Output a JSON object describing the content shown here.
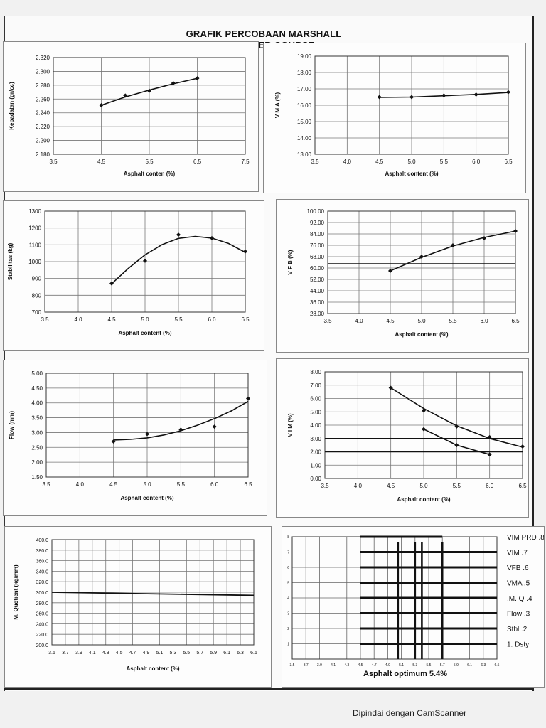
{
  "header": {
    "title_line1": "GRAFIK PERCOBAAN MARSHALL",
    "title_line2": "AC - BINDER COURSE"
  },
  "footer": {
    "text": "Dipindai dengan CamScanner"
  },
  "chart_data": [
    {
      "id": "density",
      "type": "line",
      "xlabel": "Asphalt conten (%)",
      "ylabel": "Kepadatan (gr/cc)",
      "xlim": [
        3.5,
        7.5
      ],
      "ylim": [
        2.18,
        2.32
      ],
      "xticks": [
        3.5,
        4.5,
        5.5,
        6.5,
        7.5
      ],
      "xtick_labels": [
        "3.5",
        "4.5",
        "5.5",
        "6.5",
        "7.5"
      ],
      "yticks": [
        2.18,
        2.2,
        2.22,
        2.24,
        2.26,
        2.28,
        2.3,
        2.32
      ],
      "ytick_labels": [
        "2.180",
        "2.200",
        "2.220",
        "2.240",
        "2.260",
        "2.280",
        "2.300",
        "2.320"
      ],
      "x_grid": [
        3.5,
        4.5,
        5.5,
        6.5,
        7.5
      ],
      "y_grid": [
        2.18,
        2.2,
        2.22,
        2.24,
        2.26,
        2.28,
        2.3,
        2.32
      ],
      "points": [
        [
          4.5,
          2.251
        ],
        [
          5.0,
          2.265
        ],
        [
          5.5,
          2.272
        ],
        [
          6.0,
          2.283
        ],
        [
          6.5,
          2.29
        ]
      ],
      "curves": [
        [
          [
            4.5,
            2.251
          ],
          [
            5.0,
            2.263
          ],
          [
            5.5,
            2.273
          ],
          [
            6.0,
            2.282
          ],
          [
            6.5,
            2.29
          ]
        ]
      ],
      "hlines": []
    },
    {
      "id": "vma",
      "type": "line",
      "xlabel": "Asphalt content (%)",
      "ylabel": "V M A (%)",
      "xlim": [
        3.5,
        6.5
      ],
      "ylim": [
        13.0,
        19.0
      ],
      "xticks": [
        3.5,
        4.0,
        4.5,
        5.0,
        5.5,
        6.0,
        6.5
      ],
      "xtick_labels": [
        "3.5",
        "4.0",
        "4.5",
        "5.0",
        "5.5",
        "6.0",
        "6.5"
      ],
      "yticks": [
        13,
        14,
        15,
        16,
        17,
        18,
        19
      ],
      "ytick_labels": [
        "13.00",
        "14.00",
        "15.00",
        "16.00",
        "17.00",
        "18.00",
        "19.00"
      ],
      "x_grid": [
        3.5,
        4.0,
        4.5,
        5.0,
        5.5,
        6.0,
        6.5
      ],
      "y_grid": [
        13,
        14,
        15,
        16,
        17,
        18,
        19
      ],
      "points": [
        [
          4.5,
          16.5
        ],
        [
          5.0,
          16.5
        ],
        [
          5.5,
          16.6
        ],
        [
          6.0,
          16.65
        ],
        [
          6.5,
          16.8
        ]
      ],
      "curves": [
        [
          [
            4.5,
            16.48
          ],
          [
            5.0,
            16.5
          ],
          [
            5.5,
            16.58
          ],
          [
            6.0,
            16.66
          ],
          [
            6.5,
            16.78
          ]
        ]
      ],
      "hlines": []
    },
    {
      "id": "stability",
      "type": "line",
      "xlabel": "Asphalt content (%)",
      "ylabel": "Stabilitas (kg)",
      "xlim": [
        3.5,
        6.5
      ],
      "ylim": [
        700,
        1300
      ],
      "xticks": [
        3.5,
        4.0,
        4.5,
        5.0,
        5.5,
        6.0,
        6.5
      ],
      "xtick_labels": [
        "3.5",
        "4.0",
        "4.5",
        "5.0",
        "5.5",
        "6.0",
        "6.5"
      ],
      "yticks": [
        700,
        800,
        900,
        1000,
        1100,
        1200,
        1300
      ],
      "ytick_labels": [
        "700",
        "800",
        "900",
        "1000",
        "1100",
        "1200",
        "1300"
      ],
      "x_grid": [
        3.5,
        4.0,
        4.5,
        5.0,
        5.5,
        6.0,
        6.5
      ],
      "y_grid": [
        700,
        800,
        900,
        1000,
        1100,
        1200,
        1300
      ],
      "points": [
        [
          4.5,
          870
        ],
        [
          5.0,
          1005
        ],
        [
          5.5,
          1160
        ],
        [
          6.0,
          1140
        ],
        [
          6.5,
          1060
        ]
      ],
      "curves": [
        [
          [
            4.5,
            868
          ],
          [
            4.75,
            960
          ],
          [
            5.0,
            1040
          ],
          [
            5.25,
            1100
          ],
          [
            5.5,
            1138
          ],
          [
            5.75,
            1150
          ],
          [
            6.0,
            1140
          ],
          [
            6.25,
            1108
          ],
          [
            6.5,
            1055
          ]
        ]
      ],
      "hlines": []
    },
    {
      "id": "vfb",
      "type": "line",
      "xlabel": "Asphalt content (%)",
      "ylabel": "V F B (%)",
      "xlim": [
        3.5,
        6.5
      ],
      "ylim": [
        28.0,
        100.0
      ],
      "xticks": [
        3.5,
        4.0,
        4.5,
        5.0,
        5.5,
        6.0,
        6.5
      ],
      "xtick_labels": [
        "3.5",
        "4.0",
        "4.5",
        "5.0",
        "5.5",
        "6.0",
        "6.5"
      ],
      "yticks": [
        28,
        36,
        44,
        52,
        60,
        68,
        76,
        84,
        92,
        100
      ],
      "ytick_labels": [
        "28.00",
        "36.00",
        "44.00",
        "52.00",
        "60.00",
        "68.00",
        "76.00",
        "84.00",
        "92.00",
        "100.00"
      ],
      "x_grid": [
        3.5,
        4.0,
        4.5,
        5.0,
        5.5,
        6.0,
        6.5
      ],
      "y_grid": [
        28,
        36,
        44,
        52,
        60,
        68,
        76,
        84,
        92,
        100
      ],
      "points": [
        [
          4.5,
          58
        ],
        [
          5.0,
          68
        ],
        [
          5.5,
          76
        ],
        [
          6.0,
          81
        ],
        [
          6.5,
          86
        ]
      ],
      "curves": [
        [
          [
            4.5,
            58
          ],
          [
            5.0,
            67.5
          ],
          [
            5.5,
            75.5
          ],
          [
            6.0,
            81.5
          ],
          [
            6.5,
            86
          ]
        ]
      ],
      "hlines": [
        63
      ]
    },
    {
      "id": "flow",
      "type": "line",
      "xlabel": "Asphalt content (%)",
      "ylabel": "Flow (mm)",
      "xlim": [
        3.5,
        6.5
      ],
      "ylim": [
        1.5,
        5.0
      ],
      "xticks": [
        3.5,
        4.0,
        4.5,
        5.0,
        5.5,
        6.0,
        6.5
      ],
      "xtick_labels": [
        "3.5",
        "4.0",
        "4.5",
        "5.0",
        "5.5",
        "6.0",
        "6.5"
      ],
      "yticks": [
        1.5,
        2.0,
        2.5,
        3.0,
        3.5,
        4.0,
        4.5,
        5.0
      ],
      "ytick_labels": [
        "1.50",
        "2.00",
        "2.50",
        "3.00",
        "3.50",
        "4.00",
        "4.50",
        "5.00"
      ],
      "x_grid": [
        3.5,
        4.0,
        4.5,
        5.0,
        5.5,
        6.0,
        6.5
      ],
      "y_grid": [
        1.5,
        2.0,
        2.5,
        3.0,
        3.5,
        4.0,
        4.5,
        5.0
      ],
      "points": [
        [
          4.5,
          2.7
        ],
        [
          5.0,
          2.95
        ],
        [
          5.5,
          3.1
        ],
        [
          6.0,
          3.2
        ],
        [
          6.5,
          4.15
        ]
      ],
      "curves": [
        [
          [
            4.5,
            2.75
          ],
          [
            4.75,
            2.77
          ],
          [
            5.0,
            2.82
          ],
          [
            5.25,
            2.92
          ],
          [
            5.5,
            3.06
          ],
          [
            5.75,
            3.25
          ],
          [
            6.0,
            3.47
          ],
          [
            6.25,
            3.73
          ],
          [
            6.5,
            4.05
          ]
        ]
      ],
      "hlines": []
    },
    {
      "id": "vim",
      "type": "line",
      "xlabel": "Asphalt content (%)",
      "ylabel": "V I M (%)",
      "xlim": [
        3.5,
        6.5
      ],
      "ylim": [
        0.0,
        8.0
      ],
      "xticks": [
        3.5,
        4.0,
        4.5,
        5.0,
        5.5,
        6.0,
        6.5
      ],
      "xtick_labels": [
        "3.5",
        "4.0",
        "4.5",
        "5.0",
        "5.5",
        "6.0",
        "6.5"
      ],
      "yticks": [
        0,
        1,
        2,
        3,
        4,
        5,
        6,
        7,
        8
      ],
      "ytick_labels": [
        "0.00",
        "1.00",
        "2.00",
        "3.00",
        "4.00",
        "5.00",
        "6.00",
        "7.00",
        "8.00"
      ],
      "x_grid": [
        3.5,
        4.0,
        4.5,
        5.0,
        5.5,
        6.0,
        6.5
      ],
      "y_grid": [
        0,
        1,
        2,
        3,
        4,
        5,
        6,
        7,
        8
      ],
      "points": [
        [
          4.5,
          6.8
        ],
        [
          5.0,
          5.1
        ],
        [
          5.5,
          3.9
        ],
        [
          6.0,
          3.1
        ],
        [
          6.5,
          2.4
        ],
        [
          5.0,
          3.7
        ],
        [
          5.5,
          2.5
        ],
        [
          6.0,
          1.8
        ]
      ],
      "curves": [
        [
          [
            4.5,
            6.8
          ],
          [
            5.0,
            5.25
          ],
          [
            5.5,
            3.95
          ],
          [
            6.0,
            3.0
          ],
          [
            6.5,
            2.35
          ]
        ],
        [
          [
            5.0,
            3.7
          ],
          [
            5.5,
            2.5
          ],
          [
            6.0,
            1.8
          ]
        ]
      ],
      "hlines": [
        2,
        3
      ]
    },
    {
      "id": "mq",
      "type": "line",
      "xlabel": "Asphalt content (%)",
      "ylabel": "M. Quotient (kg/mm)",
      "xlim": [
        3.5,
        6.5
      ],
      "ylim": [
        200.0,
        400.0
      ],
      "xticks": [
        3.5,
        3.7,
        3.9,
        4.1,
        4.3,
        4.5,
        4.7,
        4.9,
        5.1,
        5.3,
        5.5,
        5.7,
        5.9,
        6.1,
        6.3,
        6.5
      ],
      "xtick_labels": [
        "3.5",
        "3.7",
        "3.9",
        "4.1",
        "4.3",
        "4.5",
        "4.7",
        "4.9",
        "5.1",
        "5.3",
        "5.5",
        "5.7",
        "5.9",
        "6.1",
        "6.3",
        "6.5"
      ],
      "yticks": [
        200,
        220,
        240,
        260,
        280,
        300,
        320,
        340,
        360,
        380,
        400
      ],
      "ytick_labels": [
        "200.0",
        "220.0",
        "240.0",
        "260.0",
        "280.0",
        "300.0",
        "320.0",
        "340.0",
        "360.0",
        "380.0",
        "400.0"
      ],
      "x_grid": [
        3.5,
        3.7,
        3.9,
        4.1,
        4.3,
        4.5,
        4.7,
        4.9,
        5.1,
        5.3,
        5.5,
        5.7,
        5.9,
        6.1,
        6.3,
        6.5
      ],
      "y_grid": [
        200,
        220,
        240,
        260,
        280,
        300,
        320,
        340,
        360,
        380,
        400
      ],
      "points": [],
      "curves": [],
      "hlines": [],
      "ref_line": [
        [
          3.5,
          300
        ],
        [
          6.5,
          294
        ]
      ]
    }
  ],
  "optimum": {
    "caption": "Asphalt optimum 5.4%",
    "xlim": [
      3.5,
      6.5
    ],
    "ylim": [
      0,
      8
    ],
    "xticks": [
      3.5,
      3.7,
      3.9,
      4.1,
      4.3,
      4.5,
      4.7,
      4.9,
      5.1,
      5.3,
      5.5,
      5.7,
      5.9,
      6.1,
      6.3,
      6.5
    ],
    "xtick_labels": [
      "3.5",
      "3.7",
      "3.9",
      "4.1",
      "4.3",
      "4.5",
      "4.7",
      "4.9",
      "5.1",
      "5.3",
      "5.5",
      "5.7",
      "5.9",
      "6.1",
      "6.3",
      "6.5"
    ],
    "yticks": [
      0,
      1,
      2,
      3,
      4,
      5,
      6,
      7,
      8
    ],
    "ytick_labels": [
      "",
      "1",
      "2",
      "3",
      "4",
      "5",
      "6",
      "7",
      "8"
    ],
    "bars": [
      {
        "label": "1. Dsty",
        "row": 1,
        "x_start": 4.5,
        "x_end": 6.5
      },
      {
        "label": "Stbl .2",
        "row": 2,
        "x_start": 4.5,
        "x_end": 6.5
      },
      {
        "label": "Flow .3",
        "row": 3,
        "x_start": 4.5,
        "x_end": 6.5
      },
      {
        "label": ".M. Q .4",
        "row": 4,
        "x_start": 4.5,
        "x_end": 6.5
      },
      {
        "label": "VMA .5",
        "row": 5,
        "x_start": 4.5,
        "x_end": 6.5
      },
      {
        "label": "VFB .6",
        "row": 6,
        "x_start": 4.5,
        "x_end": 6.5
      },
      {
        "label": "VIM .7",
        "row": 7,
        "x_start": 4.5,
        "x_end": 6.5
      },
      {
        "label": "VIM PRD .8",
        "row": 8,
        "x_start": 4.5,
        "x_end": 5.7
      }
    ],
    "vlines": [
      5.05,
      5.3,
      5.4,
      5.7
    ]
  }
}
